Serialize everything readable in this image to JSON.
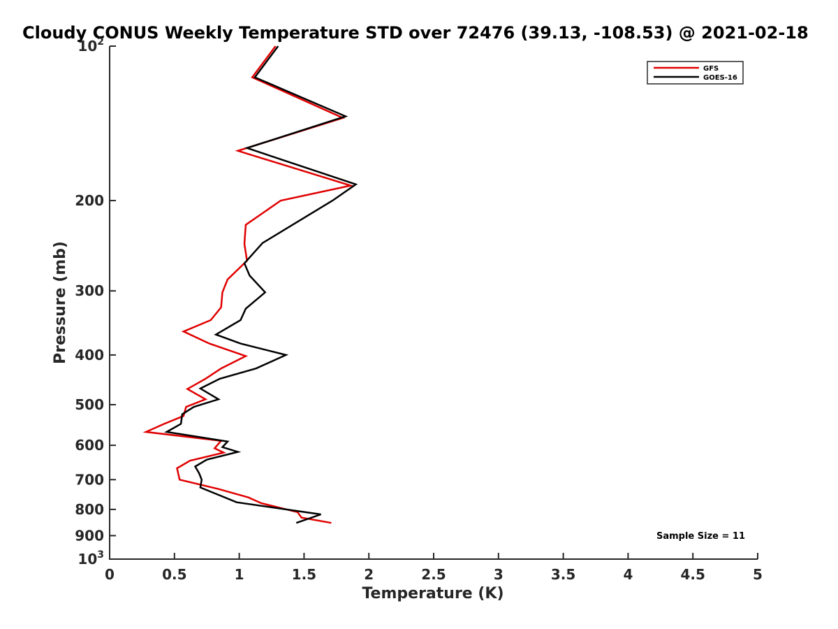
{
  "chart_data": {
    "type": "line",
    "title": "Cloudy CONUS Weekly Temperature STD over 72476 (39.13, -108.53) @ 2021-02-18",
    "xlabel": "Temperature (K)",
    "ylabel": "Pressure (mb)",
    "xlim": [
      0,
      5
    ],
    "ylim": [
      100,
      1000
    ],
    "y_scale": "log",
    "y_reversed": true,
    "x_ticks": [
      {
        "value": 0,
        "label": "0"
      },
      {
        "value": 0.5,
        "label": "0.5"
      },
      {
        "value": 1,
        "label": "1"
      },
      {
        "value": 1.5,
        "label": "1.5"
      },
      {
        "value": 2,
        "label": "2"
      },
      {
        "value": 2.5,
        "label": "2.5"
      },
      {
        "value": 3,
        "label": "3"
      },
      {
        "value": 3.5,
        "label": "3.5"
      },
      {
        "value": 4,
        "label": "4"
      },
      {
        "value": 4.5,
        "label": "4.5"
      },
      {
        "value": 5,
        "label": "5"
      }
    ],
    "y_ticks": [
      {
        "value": 100,
        "base": "10",
        "exp": "2"
      },
      {
        "value": 200,
        "base": "200",
        "exp": ""
      },
      {
        "value": 300,
        "base": "300",
        "exp": ""
      },
      {
        "value": 400,
        "base": "400",
        "exp": ""
      },
      {
        "value": 500,
        "base": "500",
        "exp": ""
      },
      {
        "value": 600,
        "base": "600",
        "exp": ""
      },
      {
        "value": 700,
        "base": "700",
        "exp": ""
      },
      {
        "value": 800,
        "base": "800",
        "exp": ""
      },
      {
        "value": 900,
        "base": "900",
        "exp": ""
      },
      {
        "value": 1000,
        "base": "10",
        "exp": "3"
      }
    ],
    "grid": false,
    "legend_position": "top-right",
    "annotation": "Sample Size = 11",
    "series": [
      {
        "name": "GFS",
        "color": "#e00000",
        "points": [
          [
            1.28,
            100
          ],
          [
            1.1,
            115
          ],
          [
            1.8,
            138
          ],
          [
            0.99,
            160
          ],
          [
            1.86,
            187
          ],
          [
            1.32,
            200
          ],
          [
            1.05,
            223
          ],
          [
            1.04,
            243
          ],
          [
            1.06,
            262
          ],
          [
            0.91,
            285
          ],
          [
            0.87,
            302
          ],
          [
            0.86,
            323
          ],
          [
            0.78,
            342
          ],
          [
            0.57,
            360
          ],
          [
            0.77,
            380
          ],
          [
            1.05,
            402
          ],
          [
            0.86,
            425
          ],
          [
            0.74,
            445
          ],
          [
            0.6,
            466
          ],
          [
            0.74,
            488
          ],
          [
            0.59,
            505
          ],
          [
            0.57,
            526
          ],
          [
            0.42,
            545
          ],
          [
            0.28,
            565
          ],
          [
            0.86,
            588
          ],
          [
            0.81,
            608
          ],
          [
            0.88,
            620
          ],
          [
            0.62,
            643
          ],
          [
            0.52,
            665
          ],
          [
            0.54,
            700
          ],
          [
            0.84,
            730
          ],
          [
            1.07,
            758
          ],
          [
            1.17,
            778
          ],
          [
            1.45,
            810
          ],
          [
            1.48,
            830
          ],
          [
            1.71,
            850
          ]
        ]
      },
      {
        "name": "GOES-16",
        "color": "#000000",
        "points": [
          [
            1.3,
            100
          ],
          [
            1.12,
            115
          ],
          [
            1.82,
            137
          ],
          [
            1.06,
            158
          ],
          [
            1.9,
            186
          ],
          [
            1.72,
            200
          ],
          [
            1.45,
            220
          ],
          [
            1.18,
            242
          ],
          [
            1.04,
            265
          ],
          [
            1.08,
            280
          ],
          [
            1.2,
            302
          ],
          [
            1.05,
            325
          ],
          [
            1.01,
            342
          ],
          [
            0.82,
            365
          ],
          [
            1.01,
            380
          ],
          [
            1.36,
            400
          ],
          [
            1.13,
            425
          ],
          [
            0.85,
            445
          ],
          [
            0.7,
            465
          ],
          [
            0.84,
            488
          ],
          [
            0.65,
            505
          ],
          [
            0.56,
            522
          ],
          [
            0.55,
            545
          ],
          [
            0.44,
            565
          ],
          [
            0.91,
            590
          ],
          [
            0.87,
            605
          ],
          [
            0.99,
            618
          ],
          [
            0.75,
            640
          ],
          [
            0.66,
            660
          ],
          [
            0.69,
            680
          ],
          [
            0.71,
            700
          ],
          [
            0.7,
            725
          ],
          [
            0.98,
            775
          ],
          [
            1.63,
            818
          ],
          [
            1.44,
            850
          ]
        ]
      }
    ]
  }
}
